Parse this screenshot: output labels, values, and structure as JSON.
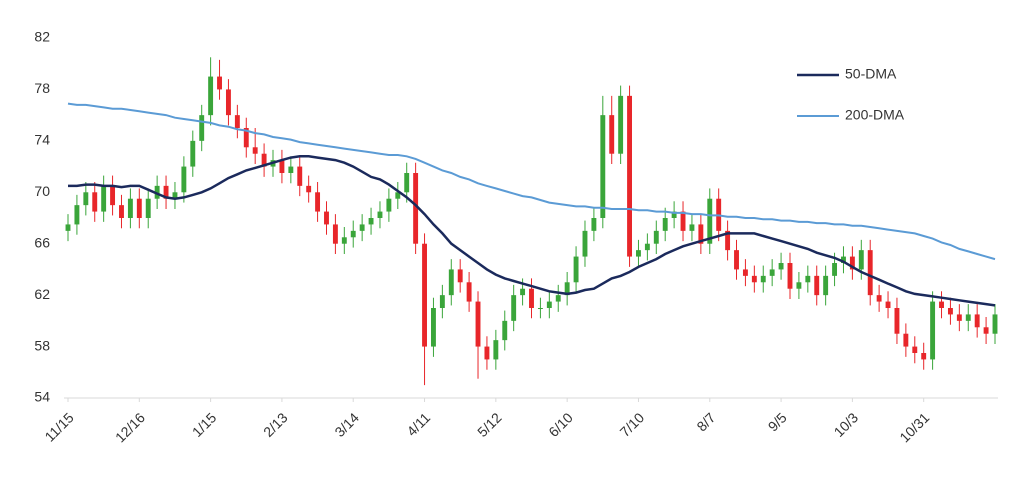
{
  "chart_data": {
    "type": "candlestick",
    "categories": [
      "11/15",
      null,
      null,
      null,
      null,
      null,
      null,
      null,
      "12/16",
      null,
      null,
      null,
      null,
      null,
      null,
      null,
      "1/15",
      null,
      null,
      null,
      null,
      null,
      null,
      null,
      "2/13",
      null,
      null,
      null,
      null,
      null,
      null,
      null,
      "3/14",
      null,
      null,
      null,
      null,
      null,
      null,
      null,
      "4/11",
      null,
      null,
      null,
      null,
      null,
      null,
      null,
      "5/12",
      null,
      null,
      null,
      null,
      null,
      null,
      null,
      "6/10",
      null,
      null,
      null,
      null,
      null,
      null,
      null,
      "7/10",
      null,
      null,
      null,
      null,
      null,
      null,
      null,
      "8/7",
      null,
      null,
      null,
      null,
      null,
      null,
      null,
      "9/5",
      null,
      null,
      null,
      null,
      null,
      null,
      null,
      "10/3",
      null,
      null,
      null,
      null,
      null,
      null,
      null,
      "10/31",
      null,
      null,
      null,
      null,
      null,
      null,
      null,
      null
    ],
    "open": [
      67,
      67.5,
      69,
      70,
      68.5,
      70.5,
      69,
      68,
      69.5,
      68,
      69.5,
      70.5,
      69.5,
      70,
      72,
      74,
      76,
      79,
      78,
      76,
      75,
      73.5,
      73,
      72,
      72.5,
      71.5,
      72,
      70.5,
      70,
      68.5,
      67.5,
      66,
      66.5,
      67,
      67.5,
      68,
      68.5,
      69.5,
      70,
      71.5,
      66,
      58,
      61,
      62,
      64,
      63,
      61.5,
      58,
      57,
      58.5,
      60,
      62,
      62.5,
      61,
      61,
      61.5,
      62,
      63,
      65,
      67,
      68,
      76,
      73,
      77.5,
      65,
      65.5,
      66,
      67,
      68,
      68.5,
      67,
      67.5,
      66,
      69.5,
      67,
      65.5,
      64,
      63.5,
      63,
      63.5,
      64,
      64.5,
      62.5,
      63,
      63.5,
      62,
      63.5,
      64.5,
      65,
      64,
      65.5,
      62,
      61.5,
      61,
      59,
      58,
      57.5,
      57,
      61.5,
      61,
      60.5,
      60,
      60.5,
      59.5,
      59
    ],
    "high": [
      68.3,
      69.8,
      70.8,
      70.8,
      71.3,
      71.3,
      69.8,
      70.3,
      70.3,
      70.3,
      71.3,
      71.3,
      70.8,
      72.8,
      74.8,
      76.8,
      80.5,
      80.3,
      78.8,
      76.8,
      75.8,
      75,
      73.8,
      73.3,
      73.3,
      72.8,
      72.8,
      71.3,
      70.8,
      69.3,
      68.3,
      67.3,
      67.8,
      68.3,
      68.8,
      69.3,
      70.3,
      70.8,
      72.3,
      72.3,
      66.8,
      61.8,
      62.8,
      64.8,
      64.8,
      63.8,
      62.3,
      58.8,
      59.3,
      60.8,
      62.8,
      63.3,
      63.3,
      61.8,
      62.3,
      62.8,
      63.8,
      65.8,
      67.8,
      68.8,
      77.5,
      77.5,
      78.3,
      78.3,
      66.3,
      66.8,
      67.8,
      68.8,
      69.3,
      69.3,
      68.3,
      68.3,
      70.3,
      70.3,
      67.8,
      66.3,
      64.8,
      64.3,
      64.3,
      64.8,
      65.3,
      65.3,
      63.8,
      64.3,
      64.3,
      64.3,
      65.3,
      65.8,
      65.8,
      66.3,
      66.3,
      62.8,
      62.3,
      61.8,
      59.8,
      58.8,
      58.3,
      62.3,
      62.3,
      61.8,
      61.3,
      61.3,
      61.3,
      60.3,
      61.3
    ],
    "low": [
      66.2,
      66.7,
      68.2,
      67.7,
      67.7,
      68.2,
      67.2,
      67.2,
      67.2,
      67.2,
      68.7,
      68.7,
      68.7,
      69.2,
      71.2,
      73.2,
      75.2,
      77.2,
      75.2,
      74.2,
      72.7,
      72.2,
      71.2,
      71.2,
      70.7,
      70.7,
      69.7,
      69.2,
      67.7,
      66.7,
      65.2,
      65.2,
      65.7,
      66.2,
      66.7,
      67.2,
      67.7,
      68.7,
      69.2,
      65.2,
      55,
      57.2,
      60.2,
      61.2,
      62.2,
      60.7,
      55.5,
      56.2,
      56.2,
      57.7,
      59.2,
      61.2,
      60.2,
      60.2,
      60.2,
      60.7,
      61.2,
      62.2,
      64.2,
      66.2,
      67.2,
      72.2,
      72.2,
      64.2,
      64.2,
      64.7,
      65.2,
      66.2,
      67.2,
      66.2,
      66.2,
      65.2,
      65.2,
      66.2,
      64.7,
      63.2,
      62.7,
      62.2,
      62.2,
      62.7,
      63.2,
      61.7,
      61.7,
      62.2,
      61.2,
      61.2,
      62.7,
      63.7,
      63.2,
      63.2,
      61.2,
      60.7,
      60.2,
      58.2,
      57.2,
      56.7,
      56.2,
      56.2,
      60.2,
      59.7,
      59.2,
      59.2,
      58.7,
      58.2,
      58.2
    ],
    "close": [
      67.5,
      69,
      70,
      68.5,
      70.5,
      69,
      68,
      69.5,
      68,
      69.5,
      70.5,
      69.5,
      70,
      72,
      74,
      76,
      79,
      78,
      76,
      75,
      73.5,
      73,
      72,
      72.5,
      71.5,
      72,
      70.5,
      70,
      68.5,
      67.5,
      66,
      66.5,
      67,
      67.5,
      68,
      68.5,
      69.5,
      70,
      71.5,
      66,
      58,
      61,
      62,
      64,
      63,
      61.5,
      58,
      57,
      58.5,
      60,
      62,
      62.5,
      61,
      61,
      61.5,
      62,
      63,
      65,
      67,
      68,
      76,
      73,
      77.5,
      65,
      65.5,
      66,
      67,
      68,
      68.5,
      67,
      67.5,
      66,
      69.5,
      67,
      65.5,
      64,
      63.5,
      63,
      63.5,
      64,
      64.5,
      62.5,
      63,
      63.5,
      62,
      63.5,
      64.5,
      65,
      64,
      65.5,
      62,
      61.5,
      61,
      59,
      58,
      57.5,
      57,
      61.5,
      61,
      60.5,
      60,
      60.5,
      59.5,
      59,
      60.5
    ],
    "up_color": "#3aa53a",
    "down_color": "#e8262a",
    "series": [
      {
        "name": "50-DMA",
        "color": "#1b2a5c",
        "values": [
          70.5,
          70.5,
          70.6,
          70.6,
          70.5,
          70.5,
          70.4,
          70.5,
          70.5,
          70.2,
          69.9,
          69.6,
          69.5,
          69.6,
          69.8,
          70,
          70.3,
          70.7,
          71.1,
          71.4,
          71.7,
          71.9,
          72.1,
          72.3,
          72.5,
          72.7,
          72.8,
          72.8,
          72.7,
          72.6,
          72.5,
          72.3,
          72,
          71.6,
          71.2,
          71,
          70.6,
          70.1,
          69.6,
          69,
          68.3,
          67.5,
          66.8,
          66,
          65.5,
          65,
          64.5,
          64,
          63.6,
          63.3,
          63.1,
          62.9,
          62.7,
          62.5,
          62.3,
          62.2,
          62.1,
          62.2,
          62.4,
          62.5,
          62.9,
          63.3,
          63.5,
          63.8,
          64.2,
          64.5,
          64.8,
          65.2,
          65.5,
          65.8,
          66,
          66.2,
          66.4,
          66.6,
          66.8,
          66.8,
          66.8,
          66.8,
          66.6,
          66.4,
          66.2,
          66,
          65.8,
          65.6,
          65.3,
          65.1,
          64.9,
          64.6,
          64.2,
          63.8,
          63.5,
          63.2,
          62.9,
          62.6,
          62.3,
          62.1,
          62,
          61.9,
          61.8,
          61.7,
          61.6,
          61.5,
          61.4,
          61.3,
          61.2
        ]
      },
      {
        "name": "200-DMA",
        "color": "#5b9bd5",
        "values": [
          76.9,
          76.8,
          76.8,
          76.7,
          76.6,
          76.5,
          76.5,
          76.4,
          76.3,
          76.2,
          76.1,
          76,
          75.8,
          75.7,
          75.6,
          75.5,
          75.4,
          75.2,
          75.1,
          74.9,
          74.8,
          74.6,
          74.5,
          74.3,
          74.2,
          74.1,
          73.9,
          73.8,
          73.7,
          73.6,
          73.5,
          73.4,
          73.3,
          73.2,
          73.1,
          73,
          72.9,
          72.9,
          72.8,
          72.6,
          72.3,
          72,
          71.7,
          71.5,
          71.2,
          71,
          70.7,
          70.5,
          70.3,
          70.1,
          69.9,
          69.7,
          69.6,
          69.4,
          69.2,
          69.1,
          69,
          68.9,
          68.9,
          68.8,
          68.8,
          68.7,
          68.7,
          68.7,
          68.6,
          68.6,
          68.5,
          68.5,
          68.4,
          68.4,
          68.3,
          68.3,
          68.2,
          68.2,
          68.1,
          68.1,
          68,
          68,
          67.9,
          67.9,
          67.8,
          67.8,
          67.7,
          67.7,
          67.6,
          67.6,
          67.5,
          67.5,
          67.4,
          67.4,
          67.3,
          67.2,
          67.1,
          67,
          66.9,
          66.8,
          66.6,
          66.4,
          66.1,
          65.9,
          65.6,
          65.4,
          65.2,
          65,
          64.8
        ]
      }
    ],
    "ylim": [
      54,
      82
    ],
    "yticks": [
      54,
      58,
      62,
      66,
      70,
      74,
      78,
      82
    ],
    "legend": "upper right"
  }
}
